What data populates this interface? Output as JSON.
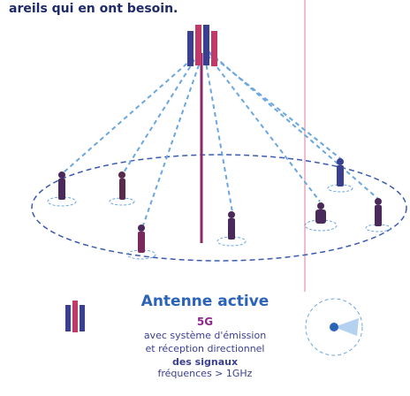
{
  "header": {
    "text": "areils qui en ont besoin."
  },
  "legend": {
    "title": "Antenne active",
    "tag": "5G",
    "lines": [
      "avec système d'émission",
      "et réception directionnel",
      "des signaux",
      "fréquences > 1GHz"
    ]
  }
}
